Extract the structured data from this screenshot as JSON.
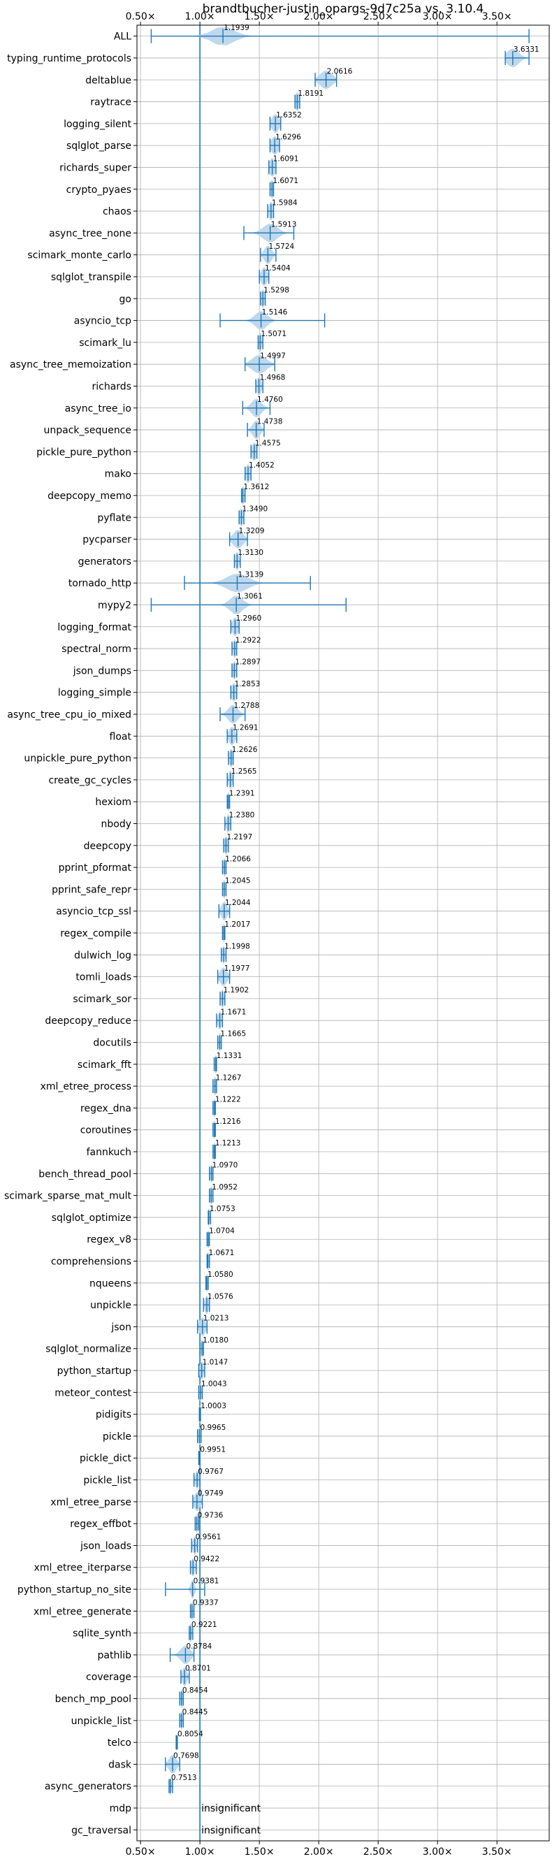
{
  "chart_data": {
    "type": "violin",
    "title": "brandtbucher-justin_opargs-9d7c25a vs. 3.10.4",
    "xlabel": "",
    "ylabel": "",
    "xlim": [
      0.47,
      3.94
    ],
    "x_ticks": [
      0.5,
      1.0,
      1.5,
      2.0,
      2.5,
      3.0,
      3.5
    ],
    "x_tick_labels": [
      "0.50×",
      "1.00×",
      "1.50×",
      "2.00×",
      "2.50×",
      "3.00×",
      "3.50×"
    ],
    "tick_labels_top_and_bottom": true,
    "grid": true,
    "reference_line_x": 1.0,
    "series_color": "#1f77b4",
    "fill_color": "#bcd6ec",
    "insignificant_text": "insignificant",
    "benchmarks": [
      {
        "name": "ALL",
        "value": 1.1939,
        "label": "1.1939",
        "min": 0.59,
        "max": 3.77,
        "spread": 0.09
      },
      {
        "name": "typing_runtime_protocols",
        "value": 3.6331,
        "label": "3.6331",
        "min": 3.57,
        "max": 3.77,
        "spread": 0.05
      },
      {
        "name": "deltablue",
        "value": 2.0616,
        "label": "2.0616",
        "min": 1.97,
        "max": 2.15,
        "spread": 0.05
      },
      {
        "name": "raytrace",
        "value": 1.8191,
        "label": "1.8191",
        "min": 1.8,
        "max": 1.84,
        "spread": 0.02
      },
      {
        "name": "logging_silent",
        "value": 1.6352,
        "label": "1.6352",
        "min": 1.59,
        "max": 1.68,
        "spread": 0.03
      },
      {
        "name": "sqlglot_parse",
        "value": 1.6296,
        "label": "1.6296",
        "min": 1.59,
        "max": 1.67,
        "spread": 0.03
      },
      {
        "name": "richards_super",
        "value": 1.6091,
        "label": "1.6091",
        "min": 1.58,
        "max": 1.64,
        "spread": 0.025
      },
      {
        "name": "crypto_pyaes",
        "value": 1.6071,
        "label": "1.6071",
        "min": 1.59,
        "max": 1.62,
        "spread": 0.015
      },
      {
        "name": "chaos",
        "value": 1.5984,
        "label": "1.5984",
        "min": 1.57,
        "max": 1.62,
        "spread": 0.02
      },
      {
        "name": "async_tree_none",
        "value": 1.5913,
        "label": "1.5913",
        "min": 1.37,
        "max": 1.79,
        "spread": 0.06
      },
      {
        "name": "scimark_monte_carlo",
        "value": 1.5724,
        "label": "1.5724",
        "min": 1.51,
        "max": 1.64,
        "spread": 0.03
      },
      {
        "name": "sqlglot_transpile",
        "value": 1.5404,
        "label": "1.5404",
        "min": 1.5,
        "max": 1.58,
        "spread": 0.025
      },
      {
        "name": "go",
        "value": 1.5298,
        "label": "1.5298",
        "min": 1.51,
        "max": 1.55,
        "spread": 0.015
      },
      {
        "name": "asyncio_tcp",
        "value": 1.5146,
        "label": "1.5146",
        "min": 1.17,
        "max": 2.05,
        "spread": 0.05
      },
      {
        "name": "scimark_lu",
        "value": 1.5071,
        "label": "1.5071",
        "min": 1.49,
        "max": 1.53,
        "spread": 0.015
      },
      {
        "name": "async_tree_memoization",
        "value": 1.4997,
        "label": "1.4997",
        "min": 1.38,
        "max": 1.63,
        "spread": 0.06
      },
      {
        "name": "richards",
        "value": 1.4968,
        "label": "1.4968",
        "min": 1.47,
        "max": 1.53,
        "spread": 0.02
      },
      {
        "name": "async_tree_io",
        "value": 1.476,
        "label": "1.4760",
        "min": 1.36,
        "max": 1.59,
        "spread": 0.04
      },
      {
        "name": "unpack_sequence",
        "value": 1.4738,
        "label": "1.4738",
        "min": 1.4,
        "max": 1.54,
        "spread": 0.03
      },
      {
        "name": "pickle_pure_python",
        "value": 1.4575,
        "label": "1.4575",
        "min": 1.43,
        "max": 1.48,
        "spread": 0.02
      },
      {
        "name": "mako",
        "value": 1.4052,
        "label": "1.4052",
        "min": 1.38,
        "max": 1.43,
        "spread": 0.02
      },
      {
        "name": "deepcopy_memo",
        "value": 1.3612,
        "label": "1.3612",
        "min": 1.35,
        "max": 1.38,
        "spread": 0.015
      },
      {
        "name": "pyflate",
        "value": 1.349,
        "label": "1.3490",
        "min": 1.33,
        "max": 1.37,
        "spread": 0.015
      },
      {
        "name": "pycparser",
        "value": 1.3209,
        "label": "1.3209",
        "min": 1.25,
        "max": 1.4,
        "spread": 0.04
      },
      {
        "name": "generators",
        "value": 1.313,
        "label": "1.3130",
        "min": 1.29,
        "max": 1.34,
        "spread": 0.015
      },
      {
        "name": "tornado_http",
        "value": 1.3139,
        "label": "1.3139",
        "min": 0.87,
        "max": 1.93,
        "spread": 0.09
      },
      {
        "name": "mypy2",
        "value": 1.3061,
        "label": "1.3061",
        "min": 0.59,
        "max": 2.23,
        "spread": 0.05
      },
      {
        "name": "logging_format",
        "value": 1.296,
        "label": "1.2960",
        "min": 1.26,
        "max": 1.33,
        "spread": 0.025
      },
      {
        "name": "spectral_norm",
        "value": 1.2922,
        "label": "1.2922",
        "min": 1.27,
        "max": 1.31,
        "spread": 0.015
      },
      {
        "name": "json_dumps",
        "value": 1.2897,
        "label": "1.2897",
        "min": 1.27,
        "max": 1.31,
        "spread": 0.015
      },
      {
        "name": "logging_simple",
        "value": 1.2853,
        "label": "1.2853",
        "min": 1.26,
        "max": 1.31,
        "spread": 0.02
      },
      {
        "name": "async_tree_cpu_io_mixed",
        "value": 1.2788,
        "label": "1.2788",
        "min": 1.17,
        "max": 1.38,
        "spread": 0.04
      },
      {
        "name": "float",
        "value": 1.2691,
        "label": "1.2691",
        "min": 1.23,
        "max": 1.31,
        "spread": 0.025
      },
      {
        "name": "unpickle_pure_python",
        "value": 1.2626,
        "label": "1.2626",
        "min": 1.24,
        "max": 1.28,
        "spread": 0.015
      },
      {
        "name": "create_gc_cycles",
        "value": 1.2565,
        "label": "1.2565",
        "min": 1.23,
        "max": 1.28,
        "spread": 0.015
      },
      {
        "name": "hexiom",
        "value": 1.2391,
        "label": "1.2391",
        "min": 1.23,
        "max": 1.25,
        "spread": 0.01
      },
      {
        "name": "nbody",
        "value": 1.238,
        "label": "1.2380",
        "min": 1.21,
        "max": 1.26,
        "spread": 0.015
      },
      {
        "name": "deepcopy",
        "value": 1.2197,
        "label": "1.2197",
        "min": 1.2,
        "max": 1.24,
        "spread": 0.015
      },
      {
        "name": "pprint_pformat",
        "value": 1.2066,
        "label": "1.2066",
        "min": 1.19,
        "max": 1.22,
        "spread": 0.012
      },
      {
        "name": "pprint_safe_repr",
        "value": 1.2045,
        "label": "1.2045",
        "min": 1.19,
        "max": 1.22,
        "spread": 0.012
      },
      {
        "name": "asyncio_tcp_ssl",
        "value": 1.2044,
        "label": "1.2044",
        "min": 1.16,
        "max": 1.25,
        "spread": 0.025
      },
      {
        "name": "regex_compile",
        "value": 1.2017,
        "label": "1.2017",
        "min": 1.19,
        "max": 1.21,
        "spread": 0.01
      },
      {
        "name": "dulwich_log",
        "value": 1.1998,
        "label": "1.1998",
        "min": 1.18,
        "max": 1.22,
        "spread": 0.012
      },
      {
        "name": "tomli_loads",
        "value": 1.1977,
        "label": "1.1977",
        "min": 1.15,
        "max": 1.25,
        "spread": 0.03
      },
      {
        "name": "scimark_sor",
        "value": 1.1902,
        "label": "1.1902",
        "min": 1.17,
        "max": 1.21,
        "spread": 0.012
      },
      {
        "name": "deepcopy_reduce",
        "value": 1.1671,
        "label": "1.1671",
        "min": 1.14,
        "max": 1.19,
        "spread": 0.015
      },
      {
        "name": "docutils",
        "value": 1.1665,
        "label": "1.1665",
        "min": 1.15,
        "max": 1.18,
        "spread": 0.01
      },
      {
        "name": "scimark_fft",
        "value": 1.1331,
        "label": "1.1331",
        "min": 1.12,
        "max": 1.14,
        "spread": 0.01
      },
      {
        "name": "xml_etree_process",
        "value": 1.1267,
        "label": "1.1267",
        "min": 1.11,
        "max": 1.14,
        "spread": 0.012
      },
      {
        "name": "regex_dna",
        "value": 1.1222,
        "label": "1.1222",
        "min": 1.11,
        "max": 1.13,
        "spread": 0.01
      },
      {
        "name": "coroutines",
        "value": 1.1216,
        "label": "1.1216",
        "min": 1.11,
        "max": 1.13,
        "spread": 0.01
      },
      {
        "name": "fannkuch",
        "value": 1.1213,
        "label": "1.1213",
        "min": 1.11,
        "max": 1.13,
        "spread": 0.01
      },
      {
        "name": "bench_thread_pool",
        "value": 1.097,
        "label": "1.0970",
        "min": 1.08,
        "max": 1.11,
        "spread": 0.012
      },
      {
        "name": "scimark_sparse_mat_mult",
        "value": 1.0952,
        "label": "1.0952",
        "min": 1.08,
        "max": 1.11,
        "spread": 0.012
      },
      {
        "name": "sqlglot_optimize",
        "value": 1.0753,
        "label": "1.0753",
        "min": 1.07,
        "max": 1.09,
        "spread": 0.008
      },
      {
        "name": "regex_v8",
        "value": 1.0704,
        "label": "1.0704",
        "min": 1.06,
        "max": 1.08,
        "spread": 0.008
      },
      {
        "name": "comprehensions",
        "value": 1.0671,
        "label": "1.0671",
        "min": 1.06,
        "max": 1.08,
        "spread": 0.008
      },
      {
        "name": "nqueens",
        "value": 1.058,
        "label": "1.0580",
        "min": 1.05,
        "max": 1.07,
        "spread": 0.008
      },
      {
        "name": "unpickle",
        "value": 1.0576,
        "label": "1.0576",
        "min": 1.03,
        "max": 1.08,
        "spread": 0.015
      },
      {
        "name": "json",
        "value": 1.0213,
        "label": "1.0213",
        "min": 0.98,
        "max": 1.06,
        "spread": 0.025
      },
      {
        "name": "sqlglot_normalize",
        "value": 1.018,
        "label": "1.0180",
        "min": 1.0,
        "max": 1.03,
        "spread": 0.01
      },
      {
        "name": "python_startup",
        "value": 1.0147,
        "label": "1.0147",
        "min": 0.99,
        "max": 1.04,
        "spread": 0.015
      },
      {
        "name": "meteor_contest",
        "value": 1.0043,
        "label": "1.0043",
        "min": 0.99,
        "max": 1.02,
        "spread": 0.01
      },
      {
        "name": "pidigits",
        "value": 1.0003,
        "label": "1.0003",
        "min": 0.995,
        "max": 1.005,
        "spread": 0.005
      },
      {
        "name": "pickle",
        "value": 0.9965,
        "label": "0.9965",
        "min": 0.98,
        "max": 1.01,
        "spread": 0.012
      },
      {
        "name": "pickle_dict",
        "value": 0.9951,
        "label": "0.9951",
        "min": 0.99,
        "max": 1.0,
        "spread": 0.006
      },
      {
        "name": "pickle_list",
        "value": 0.9767,
        "label": "0.9767",
        "min": 0.95,
        "max": 1.0,
        "spread": 0.015
      },
      {
        "name": "xml_etree_parse",
        "value": 0.9749,
        "label": "0.9749",
        "min": 0.94,
        "max": 1.02,
        "spread": 0.025
      },
      {
        "name": "regex_effbot",
        "value": 0.9736,
        "label": "0.9736",
        "min": 0.96,
        "max": 0.99,
        "spread": 0.01
      },
      {
        "name": "json_loads",
        "value": 0.9561,
        "label": "0.9561",
        "min": 0.93,
        "max": 0.98,
        "spread": 0.015
      },
      {
        "name": "xml_etree_iterparse",
        "value": 0.9422,
        "label": "0.9422",
        "min": 0.92,
        "max": 0.97,
        "spread": 0.015
      },
      {
        "name": "python_startup_no_site",
        "value": 0.9381,
        "label": "0.9381",
        "min": 0.71,
        "max": 1.04,
        "spread": 0.015
      },
      {
        "name": "xml_etree_generate",
        "value": 0.9337,
        "label": "0.9337",
        "min": 0.92,
        "max": 0.95,
        "spread": 0.01
      },
      {
        "name": "sqlite_synth",
        "value": 0.9221,
        "label": "0.9221",
        "min": 0.91,
        "max": 0.94,
        "spread": 0.01
      },
      {
        "name": "pathlib",
        "value": 0.8784,
        "label": "0.8784",
        "min": 0.75,
        "max": 0.95,
        "spread": 0.04
      },
      {
        "name": "coverage",
        "value": 0.8701,
        "label": "0.8701",
        "min": 0.84,
        "max": 0.91,
        "spread": 0.02
      },
      {
        "name": "bench_mp_pool",
        "value": 0.8454,
        "label": "0.8454",
        "min": 0.83,
        "max": 0.86,
        "spread": 0.01
      },
      {
        "name": "unpickle_list",
        "value": 0.8445,
        "label": "0.8445",
        "min": 0.83,
        "max": 0.86,
        "spread": 0.01
      },
      {
        "name": "telco",
        "value": 0.8054,
        "label": "0.8054",
        "min": 0.8,
        "max": 0.81,
        "spread": 0.006
      },
      {
        "name": "dask",
        "value": 0.7698,
        "label": "0.7698",
        "min": 0.71,
        "max": 0.83,
        "spread": 0.03
      },
      {
        "name": "async_generators",
        "value": 0.7513,
        "label": "0.7513",
        "min": 0.74,
        "max": 0.77,
        "spread": 0.01
      },
      {
        "name": "mdp",
        "value": null,
        "label": "insignificant",
        "insignificant": true
      },
      {
        "name": "gc_traversal",
        "value": null,
        "label": "insignificant",
        "insignificant": true
      }
    ]
  }
}
